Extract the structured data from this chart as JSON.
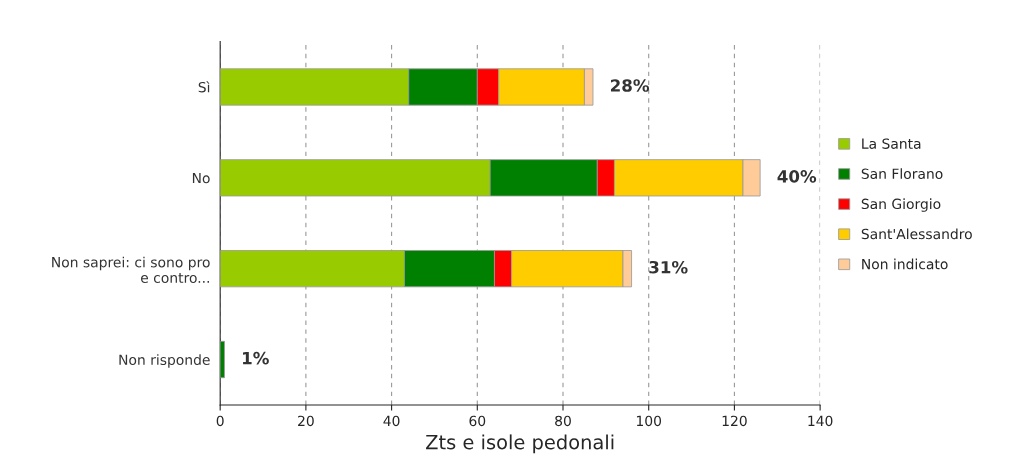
{
  "chart_data": {
    "type": "bar",
    "orientation": "horizontal",
    "stacked": true,
    "xlabel": "Zts e isole pedonali",
    "categories": [
      "Sì",
      "No",
      "Non saprei: ci sono pro\ne contro...",
      "Non risponde"
    ],
    "series": [
      {
        "name": "La Santa",
        "color": "#99cc00",
        "values": [
          44,
          63,
          43,
          0
        ]
      },
      {
        "name": "San Florano",
        "color": "#008000",
        "values": [
          16,
          25,
          21,
          1
        ]
      },
      {
        "name": "San Giorgio",
        "color": "#ff0000",
        "values": [
          5,
          4,
          4,
          0
        ]
      },
      {
        "name": "Sant'Alessandro",
        "color": "#ffcc00",
        "values": [
          20,
          30,
          26,
          0
        ]
      },
      {
        "name": "Non indicato",
        "color": "#ffcc99",
        "values": [
          2,
          4,
          2,
          0
        ]
      }
    ],
    "annotations": [
      {
        "text": "28%",
        "x": 87,
        "y": "Sì"
      },
      {
        "text": "40%",
        "x": 126,
        "y": "No"
      },
      {
        "text": "31%",
        "x": 96,
        "y": "Non saprei: ci sono pro\ne contro..."
      },
      {
        "text": "1%",
        "x": 1,
        "y": "Non risponde"
      }
    ],
    "xlim": [
      0,
      140
    ],
    "xticks": [
      0,
      20,
      40,
      60,
      80,
      100,
      120,
      140
    ],
    "grid": "x",
    "legend": "right"
  }
}
